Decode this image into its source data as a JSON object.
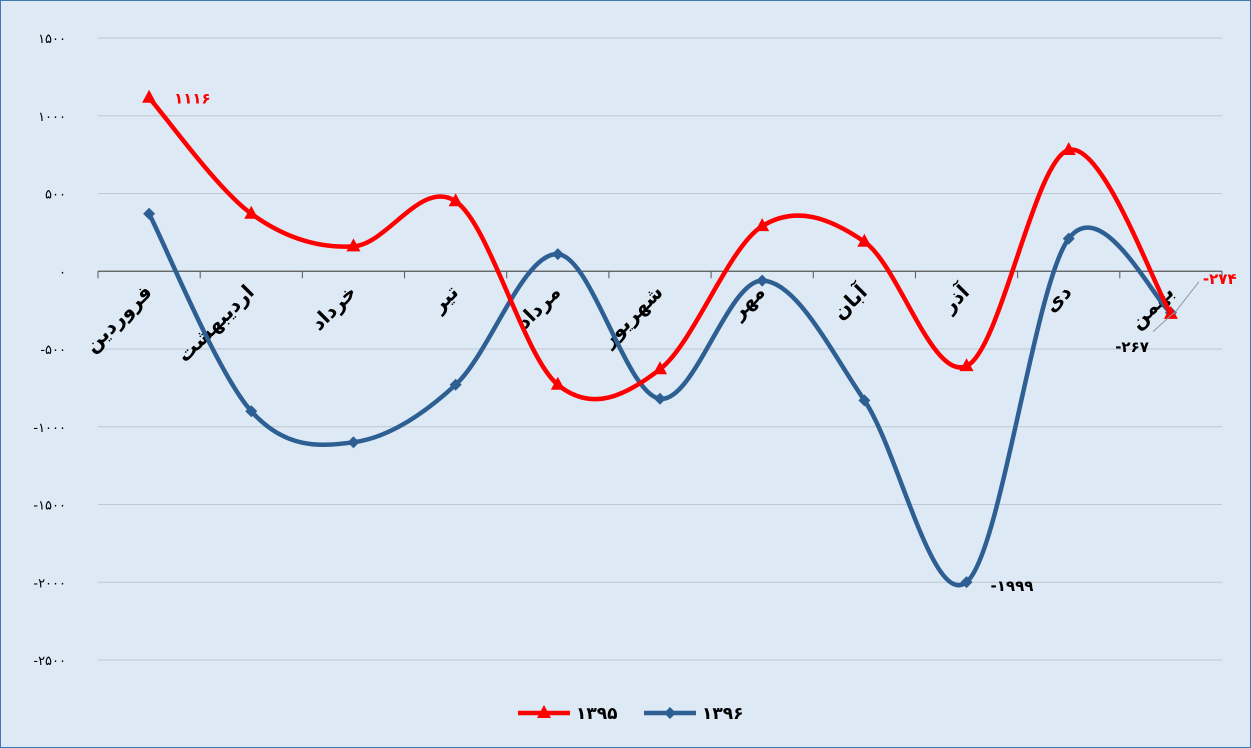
{
  "chart_data": {
    "type": "line",
    "smooth": true,
    "categories": [
      "فروردین",
      "اردیبهشت",
      "خرداد",
      "تیر",
      "مرداد",
      "شهریور",
      "مهر",
      "آبان",
      "آذر",
      "دی",
      "بهمن"
    ],
    "series": [
      {
        "name": "۱۳۹۵",
        "color": "#ff0000",
        "marker": "triangle",
        "values": [
          1116,
          370,
          160,
          450,
          -730,
          -630,
          290,
          190,
          -610,
          780,
          -274
        ]
      },
      {
        "name": "۱۳۹۶",
        "color": "#2e5f93",
        "marker": "diamond",
        "values": [
          370,
          -900,
          -1100,
          -730,
          110,
          -820,
          -60,
          -830,
          -1999,
          210,
          -267
        ]
      }
    ],
    "data_labels": [
      {
        "series": 0,
        "index": 0,
        "text": "۱۱۱۶"
      },
      {
        "series": 0,
        "index": 10,
        "text": "-۲۷۴"
      },
      {
        "series": 1,
        "index": 10,
        "text": "-۲۶۷"
      },
      {
        "series": 1,
        "index": 8,
        "text": "-۱۹۹۹"
      }
    ],
    "y_ticks": [
      {
        "value": 1500,
        "text": "۱۵۰۰"
      },
      {
        "value": 1000,
        "text": "۱۰۰۰"
      },
      {
        "value": 500,
        "text": "۵۰۰"
      },
      {
        "value": 0,
        "text": "۰"
      },
      {
        "value": -500,
        "text": "-۵۰۰"
      },
      {
        "value": -1000,
        "text": "-۱۰۰۰"
      },
      {
        "value": -1500,
        "text": "-۱۵۰۰"
      },
      {
        "value": -2000,
        "text": "-۲۰۰۰"
      },
      {
        "value": -2500,
        "text": "-۲۵۰۰"
      }
    ],
    "ylim": [
      -2500,
      1500
    ],
    "grid": true,
    "legend_position": "bottom",
    "title": "",
    "xlabel": "",
    "ylabel": ""
  }
}
